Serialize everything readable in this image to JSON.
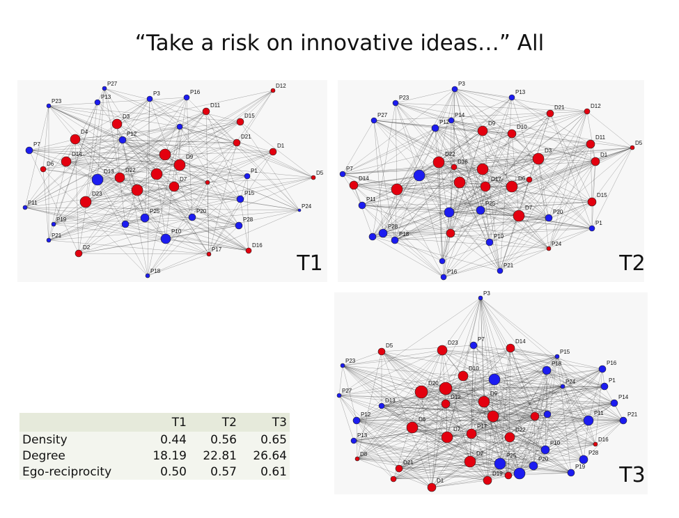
{
  "title": "“Take a risk on innovative ideas…” All",
  "networks": [
    {
      "label": "T1",
      "nodes": [
        "P27",
        "P3",
        "P16",
        "D12",
        "P23",
        "P13",
        "D11",
        "D15",
        "D3",
        "P12",
        "D4",
        "D21",
        "D1",
        "P7",
        "D14",
        "D6",
        "D13",
        "D22",
        "D7",
        "D9",
        "P1",
        "D5",
        "D23",
        "P15",
        "P11",
        "P25",
        "P20",
        "P24",
        "P19",
        "P28",
        "P10",
        "P21",
        "D2",
        "P17",
        "D16",
        "P18"
      ]
    },
    {
      "label": "T2",
      "nodes": [
        "P3",
        "P13",
        "P23",
        "D21",
        "D12",
        "P27",
        "P14",
        "P12",
        "D9",
        "D10",
        "D11",
        "D5",
        "D1",
        "D3",
        "D22",
        "D16",
        "P7",
        "D14",
        "D17",
        "D6",
        "P11",
        "D15",
        "P25",
        "D7",
        "P20",
        "P28",
        "P1",
        "P18",
        "P10",
        "P24",
        "P21",
        "P16"
      ]
    },
    {
      "label": "T3",
      "nodes": [
        "P3",
        "D5",
        "D23",
        "P7",
        "D14",
        "P15",
        "P23",
        "P16",
        "P18",
        "D10",
        "P1",
        "D20",
        "P24",
        "P27",
        "P14",
        "D13",
        "D12",
        "D9",
        "P12",
        "P11",
        "P21",
        "D6",
        "P17",
        "D7",
        "D22",
        "P13",
        "D16",
        "P10",
        "D8",
        "D2",
        "P25",
        "P28",
        "P20",
        "D21",
        "P19",
        "D19",
        "D1"
      ]
    }
  ],
  "table": {
    "header": [
      "T1",
      "T2",
      "T3"
    ],
    "rows": [
      [
        "Density",
        "0.44",
        "0.56",
        "0.65"
      ],
      [
        "Degree",
        "18.19",
        "22.81",
        "26.64"
      ],
      [
        "Ego-reciprocity",
        "0.50",
        "0.57",
        "0.61"
      ]
    ]
  }
}
